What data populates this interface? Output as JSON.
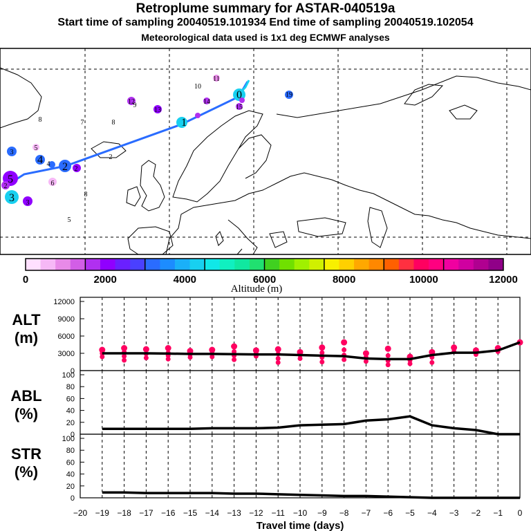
{
  "header": {
    "title": "Retroplume summary for ASTAR-040519a",
    "subtitle": "Start time of sampling 20040519.101934     End time of sampling 20040519.102054",
    "note": "Meteorological data used is 1x1 deg ECMWF analyses"
  },
  "colorbar": {
    "label": "Altitude (m)",
    "ticks": [
      "0",
      "2000",
      "4000",
      "6000",
      "8000",
      "10000",
      "12000"
    ],
    "colors": [
      "#ffe0ff",
      "#f6b8f6",
      "#e88ae8",
      "#d25ee6",
      "#b030f0",
      "#9000ff",
      "#6a20ff",
      "#4a40ff",
      "#2a6cff",
      "#1c8cff",
      "#1ab0f8",
      "#18d0f0",
      "#10e8e8",
      "#10f0c0",
      "#10e8a0",
      "#20e070",
      "#40d020",
      "#70e000",
      "#a0f000",
      "#d0f000",
      "#f8f000",
      "#ffd000",
      "#ffa800",
      "#ff8800",
      "#ff6000",
      "#ff3040",
      "#ff0060",
      "#ff0080",
      "#f000a0",
      "#d000a0",
      "#b00090",
      "#900088"
    ]
  },
  "map": {
    "trajectory_labels": [
      {
        "text": "0",
        "color": "#18d0f0"
      },
      {
        "text": "1",
        "color": "#18d0f0"
      },
      {
        "text": "2",
        "color": "#2a6cff"
      },
      {
        "text": "3",
        "color": "#18d0f0"
      },
      {
        "text": "4",
        "color": "#2a6cff"
      },
      {
        "text": "5",
        "color": "#9000ff"
      }
    ],
    "day_labels": [
      {
        "text": "10"
      },
      {
        "text": "11"
      },
      {
        "text": "12"
      },
      {
        "text": "13"
      },
      {
        "text": "14"
      },
      {
        "text": "15"
      },
      {
        "text": "19"
      },
      {
        "text": "8"
      },
      {
        "text": "7"
      },
      {
        "text": "8"
      },
      {
        "text": "5"
      },
      {
        "text": "2"
      },
      {
        "text": "6"
      },
      {
        "text": "8"
      },
      {
        "text": "5"
      },
      {
        "text": "9"
      },
      {
        "text": "3"
      },
      {
        "text": "4"
      },
      {
        "text": "3"
      },
      {
        "text": "2"
      },
      {
        "text": "2"
      }
    ]
  },
  "chart_data": [
    {
      "type": "line",
      "title": "ALT",
      "ylabel": "ALT (m)",
      "ylim": [
        0,
        12000
      ],
      "yticks": [
        "12000",
        "9000",
        "6000",
        "3000",
        "0"
      ],
      "x": [
        -19,
        -18,
        -17,
        -16,
        -15,
        -14,
        -13,
        -12,
        -11,
        -10,
        -9,
        -8,
        -7,
        -6,
        -5,
        -4,
        -3,
        -2,
        -1,
        0
      ],
      "series": [
        {
          "name": "mean altitude",
          "values": [
            3000,
            3000,
            3000,
            2950,
            2900,
            2900,
            2850,
            2800,
            2800,
            2700,
            2600,
            2500,
            2100,
            2000,
            2000,
            2700,
            3100,
            3100,
            3500,
            4900
          ]
        }
      ],
      "scatter_points": [
        {
          "x": -19,
          "y": [
            3600,
            3000,
            2400
          ]
        },
        {
          "x": -18,
          "y": [
            3900,
            3200,
            2500,
            1800
          ]
        },
        {
          "x": -17,
          "y": [
            3700,
            2900,
            2200
          ]
        },
        {
          "x": -16,
          "y": [
            3900,
            3100,
            2600,
            2000
          ]
        },
        {
          "x": -15,
          "y": [
            3400,
            2800,
            2300
          ]
        },
        {
          "x": -14,
          "y": [
            3600,
            3000,
            2400
          ]
        },
        {
          "x": -13,
          "y": [
            4200,
            3300,
            2600,
            1900
          ]
        },
        {
          "x": -12,
          "y": [
            3500,
            3000,
            2500
          ]
        },
        {
          "x": -11,
          "y": [
            3700,
            2900,
            2100,
            1400
          ]
        },
        {
          "x": -10,
          "y": [
            3200,
            2700,
            2100
          ]
        },
        {
          "x": -9,
          "y": [
            4000,
            3100,
            2300,
            1500
          ]
        },
        {
          "x": -8,
          "y": [
            4900,
            3600,
            2700,
            1900
          ]
        },
        {
          "x": -7,
          "y": [
            3000,
            2300,
            1600
          ]
        },
        {
          "x": -6,
          "y": [
            3800,
            2600,
            1700,
            1000
          ]
        },
        {
          "x": -5,
          "y": [
            2400,
            1800,
            1200
          ]
        },
        {
          "x": -4,
          "y": [
            3200,
            2300,
            1400
          ]
        },
        {
          "x": -3,
          "y": [
            4000,
            3300
          ]
        },
        {
          "x": -2,
          "y": [
            3500,
            2800
          ]
        },
        {
          "x": -1,
          "y": [
            3900,
            3300
          ]
        },
        {
          "x": 0,
          "y": [
            4900
          ]
        }
      ]
    },
    {
      "type": "line",
      "title": "ABL",
      "ylabel": "ABL (%)",
      "ylim": [
        0,
        100
      ],
      "yticks": [
        "100",
        "80",
        "60",
        "40",
        "20",
        "0"
      ],
      "x": [
        -19,
        -18,
        -17,
        -16,
        -15,
        -14,
        -13,
        -12,
        -11,
        -10,
        -9,
        -8,
        -7,
        -6,
        -5,
        -4,
        -3,
        -2,
        -1,
        0
      ],
      "series": [
        {
          "name": "ABL fraction",
          "values": [
            9,
            9,
            9,
            9,
            9,
            10,
            10,
            10,
            11,
            15,
            16,
            17,
            23,
            25,
            30,
            15,
            10,
            7,
            0,
            0
          ]
        }
      ]
    },
    {
      "type": "line",
      "title": "STR",
      "ylabel": "STR (%)",
      "ylim": [
        0,
        100
      ],
      "yticks": [
        "100",
        "80",
        "60",
        "40",
        "20",
        "0"
      ],
      "xlabel": "Travel time (days)",
      "xlim": [
        -20,
        0
      ],
      "xticks": [
        "−20",
        "−19",
        "−18",
        "−17",
        "−16",
        "−15",
        "−14",
        "−13",
        "−12",
        "−11",
        "−10",
        "−9",
        "−8",
        "−7",
        "−6",
        "−5",
        "−4",
        "−3",
        "−2",
        "−1",
        "0"
      ],
      "x": [
        -19,
        -18,
        -17,
        -16,
        -15,
        -14,
        -13,
        -12,
        -11,
        -10,
        -9,
        -8,
        -7,
        -6,
        -5,
        -4,
        -3,
        -2,
        -1,
        0
      ],
      "series": [
        {
          "name": "stratospheric fraction",
          "values": [
            9,
            9,
            8,
            8,
            8,
            8,
            7,
            7,
            6,
            5,
            4,
            3,
            3,
            2,
            1,
            0,
            0,
            0,
            0,
            0
          ]
        }
      ]
    }
  ],
  "panel_labels": {
    "alt": [
      "ALT",
      "(m)"
    ],
    "abl": [
      "ABL",
      "(%)"
    ],
    "str": [
      "STR",
      "(%)"
    ]
  }
}
